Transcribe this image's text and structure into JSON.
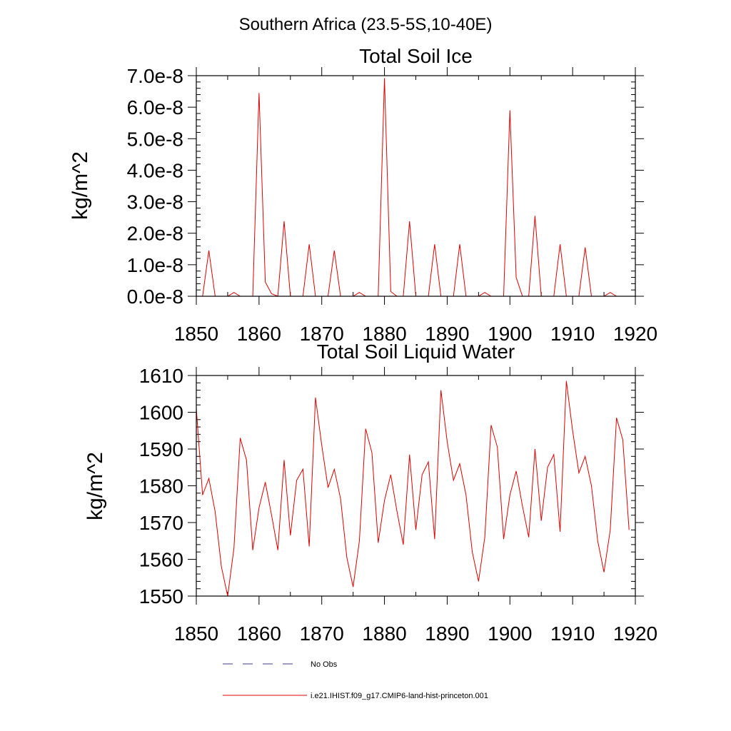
{
  "figure_title": "Southern Africa (23.5-5S,10-40E)",
  "legend": {
    "items": [
      {
        "label": "No Obs",
        "color": "#3b3b8f",
        "style": "dashed"
      },
      {
        "label": "i.e21.IHIST.f09_g17.CMIP6-land-hist-princeton.001",
        "color": "#e00000",
        "style": "solid"
      }
    ]
  },
  "chart_data": [
    {
      "type": "line",
      "title": "Total Soil Ice",
      "xlabel": "",
      "ylabel": "kg/m^2",
      "xlim": [
        1850,
        1920
      ],
      "ylim": [
        0,
        7e-08
      ],
      "xticks": [
        1850,
        1860,
        1870,
        1880,
        1890,
        1900,
        1910,
        1920
      ],
      "xtick_labels": [
        "1850",
        "1860",
        "1870",
        "1880",
        "1890",
        "1900",
        "1910",
        "1920"
      ],
      "yticks": [
        0,
        1e-08,
        2e-08,
        3e-08,
        4e-08,
        5e-08,
        6e-08,
        7e-08
      ],
      "ytick_labels": [
        "0.0e-8",
        "1.0e-8",
        "2.0e-8",
        "3.0e-8",
        "4.0e-8",
        "5.0e-8",
        "6.0e-8",
        "7.0e-8"
      ],
      "series": [
        {
          "name": "i.e21.IHIST.f09_g17.CMIP6-land-hist-princeton.001",
          "color": "#e00000",
          "x_start": 1850,
          "values": [
            0,
            0,
            1.45e-08,
            0,
            0,
            0,
            1.2e-09,
            0,
            0,
            0,
            6.45e-08,
            4.5e-09,
            8e-10,
            0,
            2.38e-08,
            0,
            0,
            0,
            1.65e-08,
            0,
            0,
            0,
            1.45e-08,
            0,
            0,
            0,
            1.2e-09,
            0,
            0,
            0,
            6.92e-08,
            1.5e-09,
            0,
            0,
            2.38e-08,
            0,
            0,
            0,
            1.65e-08,
            0,
            0,
            0,
            1.65e-08,
            0,
            0,
            0,
            1.2e-09,
            0,
            0,
            0,
            5.9e-08,
            6e-09,
            0,
            0,
            2.55e-08,
            0,
            0,
            0,
            1.65e-08,
            0,
            0,
            0,
            1.55e-08,
            0,
            0,
            0,
            1.2e-09,
            0,
            0,
            0
          ]
        }
      ]
    },
    {
      "type": "line",
      "title": "Total Soil Liquid Water",
      "xlabel": "",
      "ylabel": "kg/m^2",
      "xlim": [
        1850,
        1920
      ],
      "ylim": [
        1550,
        1610
      ],
      "xticks": [
        1850,
        1860,
        1870,
        1880,
        1890,
        1900,
        1910,
        1920
      ],
      "xtick_labels": [
        "1850",
        "1860",
        "1870",
        "1880",
        "1890",
        "1900",
        "1910",
        "1920"
      ],
      "yticks": [
        1550,
        1560,
        1570,
        1580,
        1590,
        1600,
        1610
      ],
      "ytick_labels": [
        "1550",
        "1560",
        "1570",
        "1580",
        "1590",
        "1600",
        "1610"
      ],
      "series": [
        {
          "name": "i.e21.IHIST.f09_g17.CMIP6-land-hist-princeton.001",
          "color": "#e00000",
          "x_start": 1850,
          "values": [
            1601,
            1577.5,
            1582,
            1573,
            1558,
            1550,
            1563,
            1593,
            1587,
            1562.5,
            1574,
            1581,
            1572,
            1562.5,
            1587,
            1566.5,
            1581.5,
            1584.5,
            1563.5,
            1604,
            1591,
            1579.5,
            1584.5,
            1576.5,
            1560.5,
            1552.5,
            1565,
            1595.5,
            1589,
            1564.5,
            1576,
            1583,
            1573,
            1564,
            1588.5,
            1568,
            1583,
            1586.5,
            1565.5,
            1606,
            1592,
            1581.5,
            1586,
            1577.5,
            1562,
            1554,
            1566,
            1596.5,
            1590.5,
            1565.5,
            1577.5,
            1584,
            1574.5,
            1566,
            1590,
            1570.5,
            1585,
            1588.5,
            1567.5,
            1608.5,
            1595,
            1583.5,
            1588,
            1580,
            1565,
            1556.5,
            1568,
            1598.5,
            1592.5,
            1568
          ]
        }
      ]
    }
  ]
}
